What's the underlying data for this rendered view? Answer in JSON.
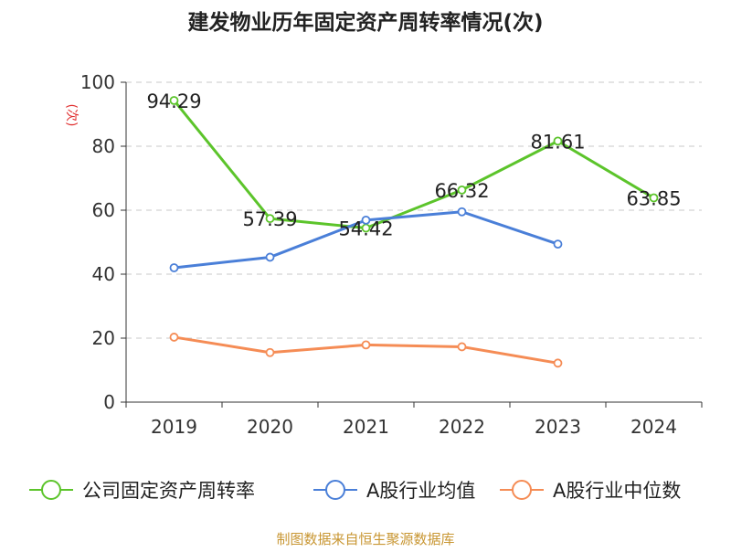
{
  "chart_data": {
    "type": "line",
    "title": "建发物业历年固定资产周转率情况(次)",
    "ylabel": "(次)",
    "xlabel": "",
    "ylim": [
      0,
      100
    ],
    "yticks": [
      0,
      20,
      40,
      60,
      80,
      100
    ],
    "grid": true,
    "legend_position": "bottom",
    "categories": [
      "2019",
      "2020",
      "2021",
      "2022",
      "2023",
      "2024"
    ],
    "series": [
      {
        "name": "公司固定资产周转率",
        "color": "#5cc42b",
        "values": [
          94.29,
          57.39,
          54.42,
          66.32,
          81.61,
          63.85
        ],
        "show_labels": true
      },
      {
        "name": "A股行业均值",
        "color": "#4a7fd8",
        "values": [
          42.0,
          45.3,
          56.9,
          59.5,
          49.4,
          null
        ],
        "show_labels": false
      },
      {
        "name": "A股行业中位数",
        "color": "#f58c55",
        "values": [
          20.3,
          15.5,
          17.9,
          17.3,
          12.2,
          null
        ],
        "show_labels": false
      }
    ],
    "source": "制图数据来自恒生聚源数据库",
    "source_color": "#c89632",
    "ylabel_color": "#e03030"
  }
}
